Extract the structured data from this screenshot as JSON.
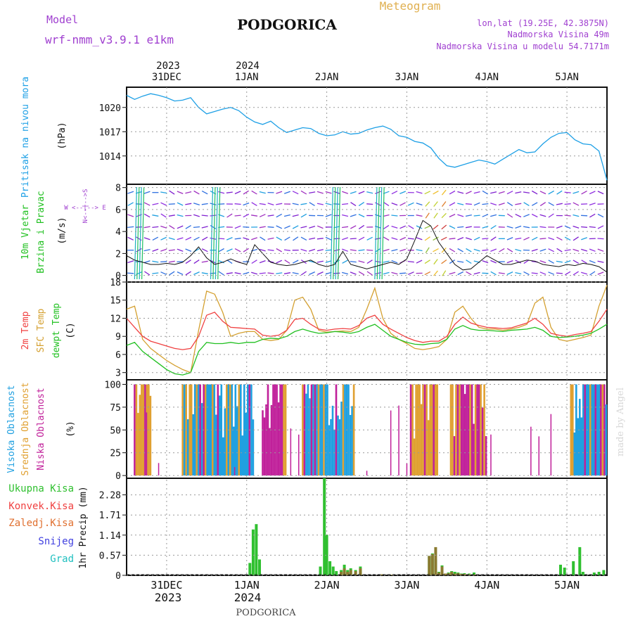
{
  "header": {
    "model_label": "Model",
    "model_name": "wrf-nmm_v3.9.1 e1km",
    "title": "PODGORICA",
    "meteogram_label": "Meteogram",
    "coords": "lon,lat (19.25E, 42.3875N)",
    "elevation": "Nadmorska Visina 49m",
    "model_elevation": "Nadmorska Visina u modelu 54.7171m",
    "footer_title": "PODGORICA",
    "watermark": "made by Angel"
  },
  "colors": {
    "pressure": "#1ea0e6",
    "temp": "#f04040",
    "sfc_temp": "#d4a030",
    "dewpt": "#20c020",
    "high_cloud": "#20a0e0",
    "mid_cloud": "#e0a030",
    "low_cloud": "#c0209a",
    "total_precip": "#30c030",
    "conv_precip": "#f04040",
    "frozen_precip": "#e07030",
    "snow": "#4040e0",
    "graupel": "#20c0c0",
    "header_purple": "#a040d0",
    "header_orange": "#e0b050"
  },
  "time_axis": {
    "top_year_labels": [
      "2023",
      "2024"
    ],
    "top_day_labels": [
      "31DEC",
      "1JAN",
      "2JAN",
      "3JAN",
      "4JAN",
      "5JAN"
    ],
    "bottom_day_labels": [
      "31DEC",
      "1JAN",
      "2JAN",
      "3JAN",
      "4JAN",
      "5JAN"
    ],
    "bottom_year_labels": [
      "2023",
      "2024"
    ],
    "day_offsets": [
      0.5,
      1.5,
      2.5,
      3.5,
      4.5,
      5.5
    ],
    "range_days": [
      0,
      6
    ]
  },
  "panels": {
    "pressure": {
      "ylabel_color_text": "Pritisak na nivou mora",
      "unit": "(hPa)",
      "ticks": [
        "1014",
        "1017",
        "1020"
      ],
      "tick_values": [
        1014,
        1017,
        1020
      ],
      "ylim": [
        1010.5,
        1022.5
      ]
    },
    "wind": {
      "ylabel_line1": "10m Vjetar",
      "ylabel_line2": "Brzina i Pravac",
      "unit": "(m/s)",
      "compass": "W <--|--> E",
      "compass_vert": "N<--|-->S",
      "ticks": [
        "0",
        "2",
        "4",
        "6",
        "8"
      ],
      "tick_values": [
        0,
        2,
        4,
        6,
        8
      ],
      "ylim": [
        -0.6,
        8.3
      ]
    },
    "temp": {
      "label_temp": "2m Temp",
      "label_sfc": "SFC Temp",
      "label_dewpt": "dewpt Temp",
      "unit": "(C)",
      "ticks": [
        "3",
        "6",
        "9",
        "12",
        "15",
        "18"
      ],
      "tick_values": [
        3,
        6,
        9,
        12,
        15,
        18
      ],
      "ylim": [
        1.8,
        18
      ]
    },
    "cloud": {
      "label_high": "Visoka Oblacnost",
      "label_mid": "Srednja Oblacnost",
      "label_low": "Niska Oblacnost",
      "unit": "(%)",
      "ticks": [
        "0",
        "25",
        "50",
        "75",
        "100"
      ],
      "tick_values": [
        0,
        25,
        50,
        75,
        100
      ],
      "ylim": [
        -3,
        105
      ]
    },
    "precip": {
      "label_total": "Ukupna Kisa",
      "label_conv": "Konvek.Kisa",
      "label_frozen": "Zaledj.Kisa",
      "label_snow": "Snijeg",
      "label_grad": "Grad",
      "unit": "1hr Precip (mm)",
      "ticks": [
        "0",
        "0.57",
        "1.14",
        "1.71",
        "2.28"
      ],
      "tick_values": [
        0,
        0.57,
        1.14,
        1.71,
        2.28
      ],
      "ylim": [
        0,
        2.75
      ]
    }
  },
  "chart_data": [
    {
      "type": "line",
      "title": "Pritisak na nivou mora",
      "ylabel": "(hPa)",
      "x_unit": "days from 30DEC 12UTC",
      "x": [
        0.0,
        0.1,
        0.2,
        0.3,
        0.4,
        0.5,
        0.6,
        0.7,
        0.8,
        0.9,
        1.0,
        1.1,
        1.2,
        1.3,
        1.4,
        1.5,
        1.6,
        1.7,
        1.8,
        1.9,
        2.0,
        2.1,
        2.2,
        2.3,
        2.4,
        2.5,
        2.6,
        2.7,
        2.8,
        2.9,
        3.0,
        3.1,
        3.2,
        3.3,
        3.4,
        3.5,
        3.6,
        3.7,
        3.8,
        3.9,
        4.0,
        4.1,
        4.2,
        4.3,
        4.4,
        4.5,
        4.6,
        4.7,
        4.8,
        4.9,
        5.0,
        5.1,
        5.2,
        5.3,
        5.4,
        5.5,
        5.6,
        5.7,
        5.8,
        5.9,
        6.0
      ],
      "values": [
        1021.5,
        1021.0,
        1021.4,
        1021.7,
        1021.5,
        1021.2,
        1020.8,
        1020.9,
        1021.2,
        1020.0,
        1019.2,
        1019.5,
        1019.8,
        1020.0,
        1019.6,
        1018.8,
        1018.2,
        1017.9,
        1018.3,
        1017.5,
        1016.9,
        1017.2,
        1017.5,
        1017.4,
        1016.8,
        1016.5,
        1016.6,
        1017.0,
        1016.7,
        1016.8,
        1017.2,
        1017.5,
        1017.7,
        1017.3,
        1016.5,
        1016.3,
        1015.8,
        1015.6,
        1015.0,
        1013.7,
        1012.8,
        1012.6,
        1012.9,
        1013.2,
        1013.5,
        1013.3,
        1013.0,
        1013.6,
        1014.2,
        1014.8,
        1014.4,
        1014.5,
        1015.5,
        1016.3,
        1016.8,
        1016.9,
        1016.0,
        1015.5,
        1015.4,
        1014.6,
        1011.0
      ]
    },
    {
      "type": "line",
      "title": "2m Temp / SFC Temp / dewpt Temp",
      "ylabel": "(C)",
      "x_unit": "days from 30DEC 12UTC",
      "x": [
        0.0,
        0.1,
        0.2,
        0.3,
        0.4,
        0.5,
        0.6,
        0.7,
        0.8,
        0.9,
        1.0,
        1.1,
        1.2,
        1.3,
        1.4,
        1.5,
        1.6,
        1.7,
        1.8,
        1.9,
        2.0,
        2.1,
        2.2,
        2.3,
        2.4,
        2.5,
        2.6,
        2.7,
        2.8,
        2.9,
        3.0,
        3.1,
        3.2,
        3.3,
        3.4,
        3.5,
        3.6,
        3.7,
        3.8,
        3.9,
        4.0,
        4.1,
        4.2,
        4.3,
        4.4,
        4.5,
        4.6,
        4.7,
        4.8,
        4.9,
        5.0,
        5.1,
        5.2,
        5.3,
        5.4,
        5.5,
        5.6,
        5.7,
        5.8,
        5.9,
        6.0
      ],
      "series": [
        {
          "name": "2m Temp",
          "values": [
            12.0,
            10.5,
            9.0,
            8.2,
            7.8,
            7.4,
            7.0,
            6.8,
            7.0,
            9.0,
            12.5,
            13.0,
            11.5,
            10.5,
            10.4,
            10.3,
            10.2,
            9.2,
            9.0,
            9.2,
            10.0,
            11.8,
            12.0,
            11.0,
            10.2,
            10.0,
            10.2,
            10.3,
            10.2,
            10.8,
            12.0,
            12.5,
            11.0,
            10.2,
            9.5,
            8.8,
            8.3,
            8.0,
            8.2,
            8.2,
            9.0,
            11.0,
            12.2,
            11.2,
            10.8,
            10.5,
            10.4,
            10.3,
            10.4,
            10.8,
            11.2,
            12.0,
            11.0,
            9.5,
            9.2,
            9.0,
            9.3,
            9.5,
            9.8,
            11.5,
            13.5
          ]
        },
        {
          "name": "SFC Temp",
          "values": [
            13.5,
            14.0,
            8.5,
            7.0,
            6.0,
            5.0,
            4.2,
            3.5,
            3.0,
            10.0,
            16.5,
            16.0,
            13.0,
            9.0,
            9.5,
            9.8,
            9.8,
            8.5,
            8.3,
            8.5,
            10.0,
            15.0,
            15.5,
            13.5,
            10.0,
            9.7,
            9.8,
            9.9,
            9.8,
            10.5,
            13.5,
            17.0,
            12.0,
            9.5,
            8.5,
            7.8,
            7.0,
            6.8,
            7.0,
            7.3,
            8.5,
            13.0,
            14.0,
            12.0,
            10.5,
            10.2,
            10.2,
            10.0,
            10.2,
            10.5,
            11.0,
            14.5,
            15.5,
            10.5,
            8.5,
            8.2,
            8.5,
            8.8,
            9.2,
            14.0,
            17.5
          ]
        },
        {
          "name": "dewpt Temp",
          "values": [
            7.5,
            8.0,
            6.5,
            5.5,
            4.5,
            3.5,
            2.8,
            2.6,
            3.0,
            6.5,
            8.0,
            7.8,
            7.8,
            8.0,
            7.8,
            8.0,
            8.0,
            8.5,
            8.7,
            8.6,
            9.0,
            9.8,
            10.2,
            9.8,
            9.5,
            9.6,
            9.8,
            9.7,
            9.5,
            9.8,
            10.5,
            11.0,
            10.0,
            9.0,
            8.5,
            8.0,
            7.7,
            7.6,
            7.8,
            7.9,
            8.5,
            10.2,
            10.8,
            10.2,
            10.0,
            10.0,
            9.9,
            9.8,
            10.0,
            10.1,
            10.2,
            10.5,
            10.0,
            9.0,
            8.8,
            8.9,
            9.0,
            9.2,
            9.5,
            10.2,
            11.0
          ]
        }
      ],
      "ylim": [
        1.8,
        18
      ]
    },
    {
      "type": "bar",
      "title": "1hr Precip",
      "ylabel": "1hr Precip (mm)",
      "x_unit": "days from 30DEC 12UTC",
      "x": [
        1.54,
        1.58,
        1.62,
        1.66,
        1.7,
        2.42,
        2.47,
        2.5,
        2.54,
        2.58,
        2.62,
        2.68,
        2.72,
        2.76,
        2.8,
        2.86,
        2.92,
        3.18,
        3.32,
        3.78,
        3.82,
        3.86,
        3.9,
        3.94,
        3.98,
        4.02,
        4.06,
        4.1,
        4.14,
        4.18,
        4.22,
        4.28,
        4.34,
        5.42,
        5.47,
        5.58,
        5.66,
        5.7,
        5.84,
        5.9,
        5.96
      ],
      "series": [
        {
          "name": "Ukupna Kisa",
          "values": [
            0.35,
            1.3,
            1.45,
            0.45,
            0.0,
            0.25,
            2.75,
            1.15,
            0.4,
            0.25,
            0.12,
            0.15,
            0.3,
            0.15,
            0.2,
            0.15,
            0.25,
            0.03,
            0.02,
            0.55,
            0.62,
            0.45,
            0.1,
            0.28,
            0.05,
            0.08,
            0.12,
            0.1,
            0.08,
            0.05,
            0.06,
            0.05,
            0.08,
            0.3,
            0.22,
            0.4,
            0.8,
            0.1,
            0.08,
            0.1,
            0.15
          ]
        },
        {
          "name": "Konvek.Kisa",
          "values": [
            0.0,
            0.0,
            0.0,
            0.0,
            0.0,
            0.0,
            0.0,
            0.0,
            0.0,
            0.0,
            0.0,
            0.1,
            0.2,
            0.1,
            0.15,
            0.12,
            0.2,
            0.03,
            0.02,
            0.55,
            0.6,
            0.8,
            0.08,
            0.25,
            0.05,
            0.06,
            0.1,
            0.05,
            0.06,
            0.04,
            0.04,
            0.03,
            0.03,
            0.0,
            0.0,
            0.0,
            0.0,
            0.0,
            0.0,
            0.0,
            0.0
          ]
        }
      ],
      "ylim": [
        0,
        2.75
      ]
    }
  ]
}
